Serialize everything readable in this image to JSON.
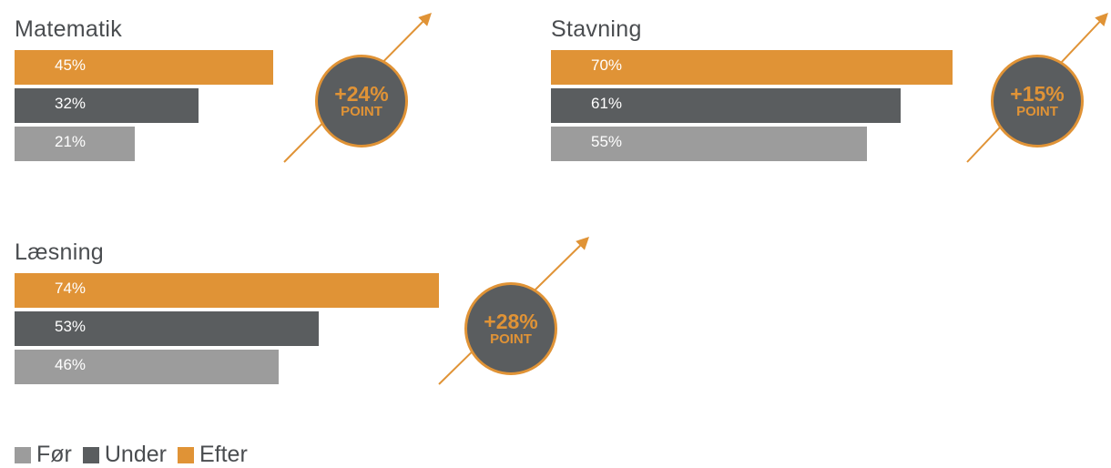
{
  "chart_data": {
    "type": "bar",
    "orientation": "horizontal",
    "legend_position": "bottom-left",
    "grid": false,
    "series": [
      {
        "name": "Før",
        "color": "#9c9c9c"
      },
      {
        "name": "Under",
        "color": "#5a5d5f"
      },
      {
        "name": "Efter",
        "color": "#e09336"
      }
    ],
    "panels": [
      {
        "title": "Matematik",
        "values": {
          "Efter": 45,
          "Under": 32,
          "Før": 21
        },
        "labels": {
          "Efter": "45%",
          "Under": "32%",
          "Før": "21%"
        },
        "badge_value": "+24%",
        "badge_unit": "POINT"
      },
      {
        "title": "Stavning",
        "values": {
          "Efter": 70,
          "Under": 61,
          "Før": 55
        },
        "labels": {
          "Efter": "70%",
          "Under": "61%",
          "Før": "55%"
        },
        "badge_value": "+15%",
        "badge_unit": "POINT"
      },
      {
        "title": "Læsning",
        "values": {
          "Efter": 74,
          "Under": 53,
          "Før": 46
        },
        "labels": {
          "Efter": "74%",
          "Under": "53%",
          "Før": "46%"
        },
        "badge_value": "+28%",
        "badge_unit": "POINT"
      }
    ],
    "xlim": [
      0,
      100
    ]
  }
}
